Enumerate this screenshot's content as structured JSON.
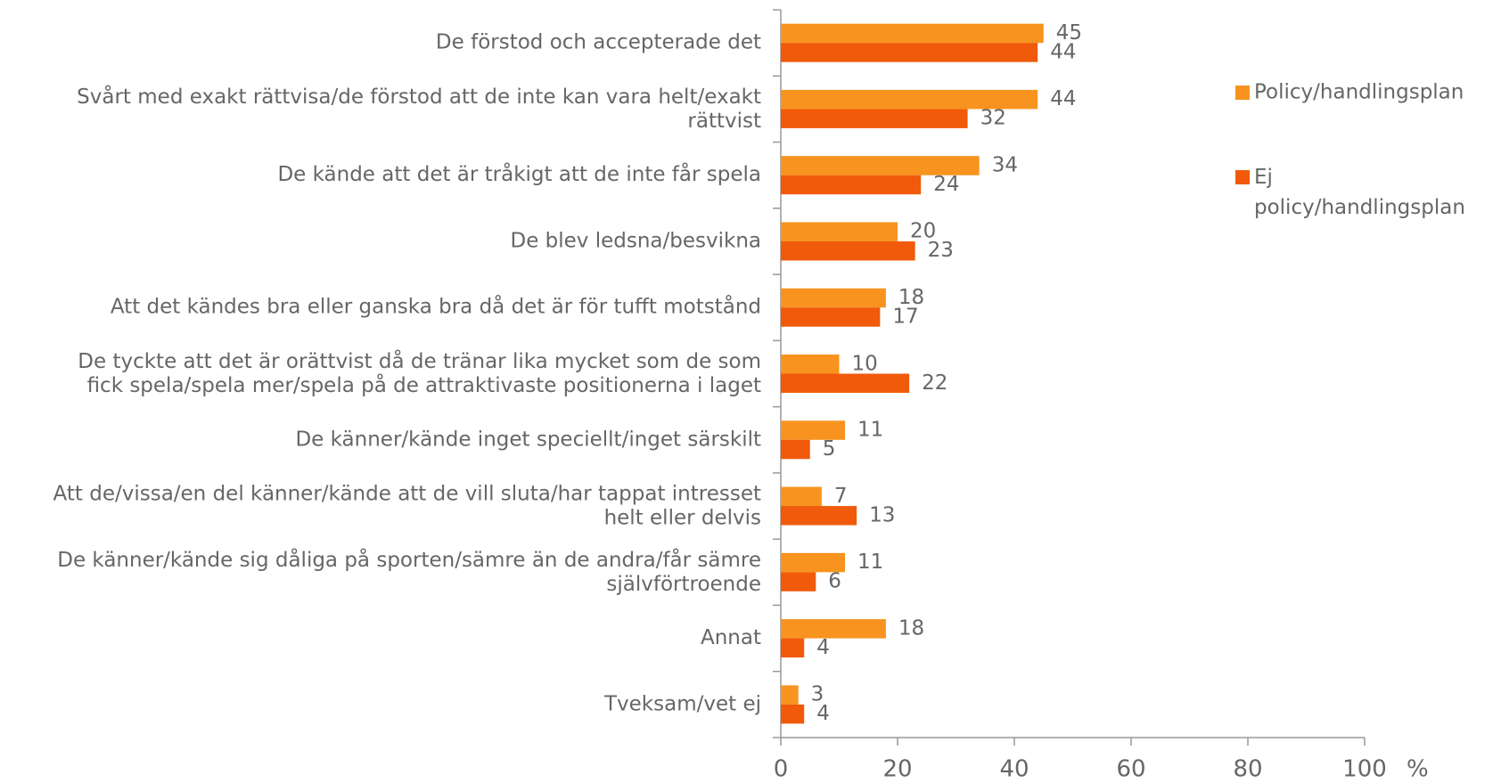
{
  "chart_data": {
    "type": "hbar",
    "categories": [
      "De förstod och accepterade det",
      "Svårt med exakt rättvisa/de förstod att de inte kan vara helt/exakt\nrättvist",
      "De kände att det är tråkigt att de inte får spela",
      "De blev ledsna/besvikna",
      "Att det kändes bra eller ganska bra då det är för tufft motstånd",
      "De tyckte att det är orättvist då de tränar lika  mycket som de som\nfick spela/spela mer/spela på de attraktivaste positionerna i laget",
      "De känner/kände inget speciellt/inget särskilt",
      "Att de/vissa/en del känner/kände att de vill sluta/har tappat intresset\nhelt eller delvis",
      "De känner/kände sig dåliga på sporten/sämre än de andra/får sämre\nsjälvförtroende",
      "Annat",
      "Tveksam/vet ej"
    ],
    "series": [
      {
        "name": "Policy/handlingsplan",
        "color": "#f7931e",
        "values": [
          45,
          44,
          34,
          20,
          18,
          10,
          11,
          7,
          11,
          18,
          3
        ]
      },
      {
        "name": "Ej policy/handlingsplan",
        "color": "#f05a0a",
        "values": [
          44,
          32,
          24,
          23,
          17,
          22,
          5,
          13,
          6,
          4,
          4
        ]
      }
    ],
    "xlim": [
      0,
      100
    ],
    "xticks": [
      0,
      20,
      40,
      60,
      80,
      100
    ],
    "xlabel": "%",
    "legend": "right"
  }
}
